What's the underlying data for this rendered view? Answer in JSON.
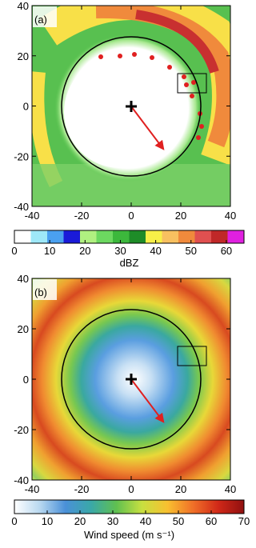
{
  "chart_data": [
    {
      "type": "field",
      "panel_label": "(a)",
      "xlim": [
        -40,
        40
      ],
      "ylim": [
        -40,
        40
      ],
      "xticks": [
        -40,
        -20,
        0,
        20,
        40
      ],
      "yticks": [
        -40,
        -20,
        0,
        20,
        40
      ],
      "colorbar": {
        "kind": "discrete",
        "label": "dBZ",
        "range": [
          0,
          65
        ],
        "ticks": [
          0,
          10,
          20,
          30,
          40,
          50,
          60
        ],
        "colors": [
          "#ffffff",
          "#9ee8f8",
          "#4aa0f0",
          "#1a1ad8",
          "#b0f080",
          "#6cd860",
          "#3cb83c",
          "#1e8c28",
          "#f8f048",
          "#f8c060",
          "#f08a3c",
          "#e05050",
          "#c02828",
          "#e020e0"
        ]
      }
    },
    {
      "type": "field",
      "panel_label": "(b)",
      "xlim": [
        -40,
        40
      ],
      "ylim": [
        -40,
        40
      ],
      "xticks": [
        -40,
        -20,
        0,
        20,
        40
      ],
      "yticks": [
        -40,
        -20,
        0,
        20,
        40
      ],
      "colorbar": {
        "kind": "continuous",
        "label": "Wind speed (m s⁻¹)",
        "range": [
          0,
          70
        ],
        "ticks": [
          0,
          10,
          20,
          30,
          40,
          50,
          60,
          70
        ],
        "colors": [
          "#ffffff",
          "#b8d8f0",
          "#4a90d8",
          "#3aa8a8",
          "#60c050",
          "#c8e040",
          "#f8c030",
          "#f07028",
          "#d02818",
          "#901010"
        ]
      }
    }
  ]
}
